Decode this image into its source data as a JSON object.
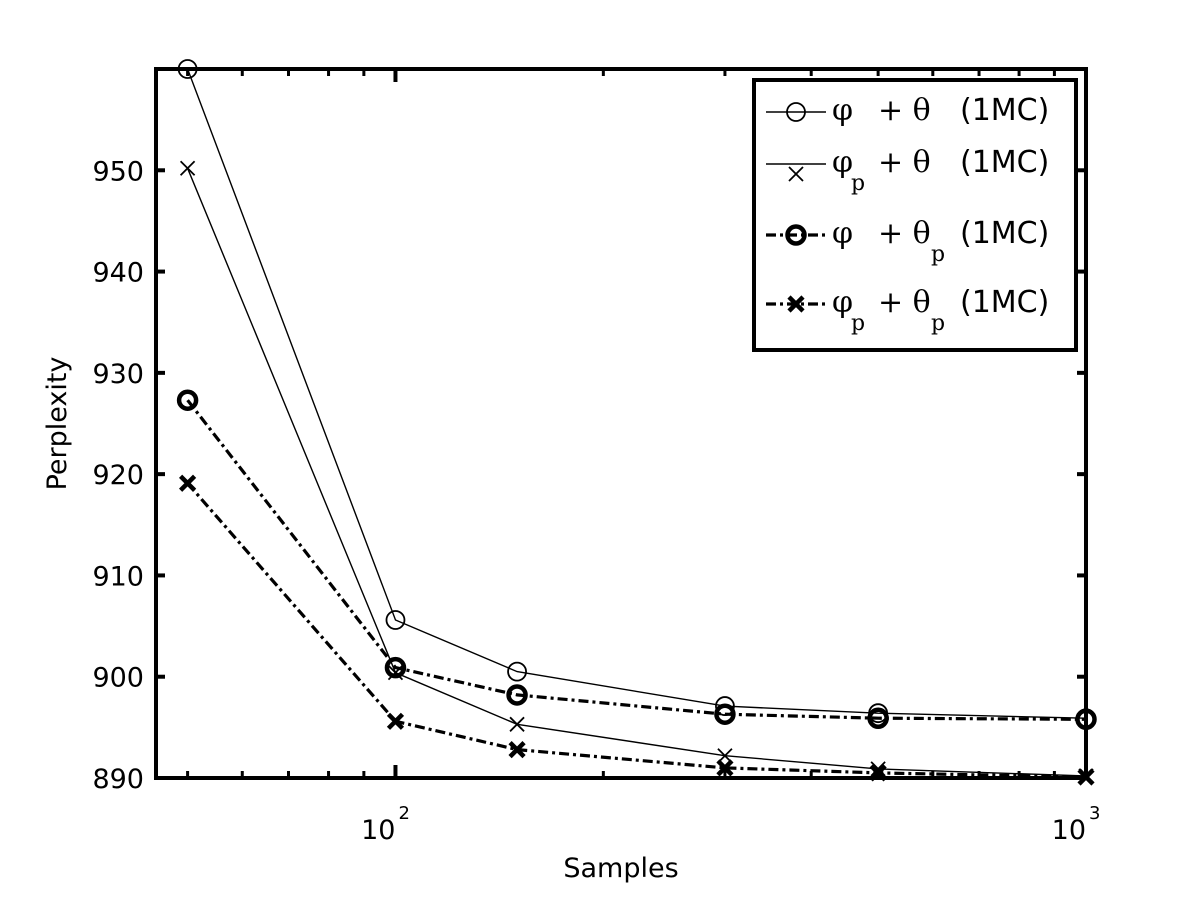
{
  "chart_data": {
    "type": "line",
    "xscale": "log",
    "xlabel": "Samples",
    "ylabel": "Perplexity",
    "xlim": [
      45,
      1000
    ],
    "ylim": [
      890,
      960
    ],
    "x": [
      50,
      100,
      150,
      300,
      500,
      1000
    ],
    "x_ticks": [
      {
        "base": "10",
        "exp": "2"
      },
      {
        "base": "10",
        "exp": "3"
      }
    ],
    "y_ticks": [
      "890",
      "900",
      "910",
      "920",
      "930",
      "940",
      "950"
    ],
    "grid": false,
    "legend_position": "top-right",
    "series": [
      {
        "name": "φ + θ (1MC)",
        "legend": {
          "sym1": "φ",
          "sub1": "",
          "sym2": "+ θ",
          "sub2": "",
          "mc": "(1MC)"
        },
        "marker": "circle",
        "style": "solid",
        "weight": "thin",
        "values": [
          960,
          905.6,
          900.5,
          897.1,
          896.4,
          895.9
        ]
      },
      {
        "name": "φp + θ (1MC)",
        "legend": {
          "sym1": "φ",
          "sub1": "p",
          "sym2": "+ θ",
          "sub2": "",
          "mc": "(1MC)"
        },
        "marker": "x",
        "style": "solid",
        "weight": "thin",
        "values": [
          950.2,
          900.4,
          895.3,
          892.2,
          890.9,
          890.2
        ]
      },
      {
        "name": "φ + θp (1MC)",
        "legend": {
          "sym1": "φ",
          "sub1": "",
          "sym2": "+ θ",
          "sub2": "p",
          "mc": "(1MC)"
        },
        "marker": "circle",
        "style": "dashdot",
        "weight": "bold",
        "values": [
          927.3,
          900.9,
          898.2,
          896.3,
          895.9,
          895.8
        ]
      },
      {
        "name": "φp + θp (1MC)",
        "legend": {
          "sym1": "φ",
          "sub1": "p",
          "sym2": "+ θ",
          "sub2": "p",
          "mc": "(1MC)"
        },
        "marker": "x",
        "style": "dashdot",
        "weight": "bold",
        "values": [
          919.1,
          895.6,
          892.8,
          891.0,
          890.5,
          890.1
        ]
      }
    ]
  }
}
